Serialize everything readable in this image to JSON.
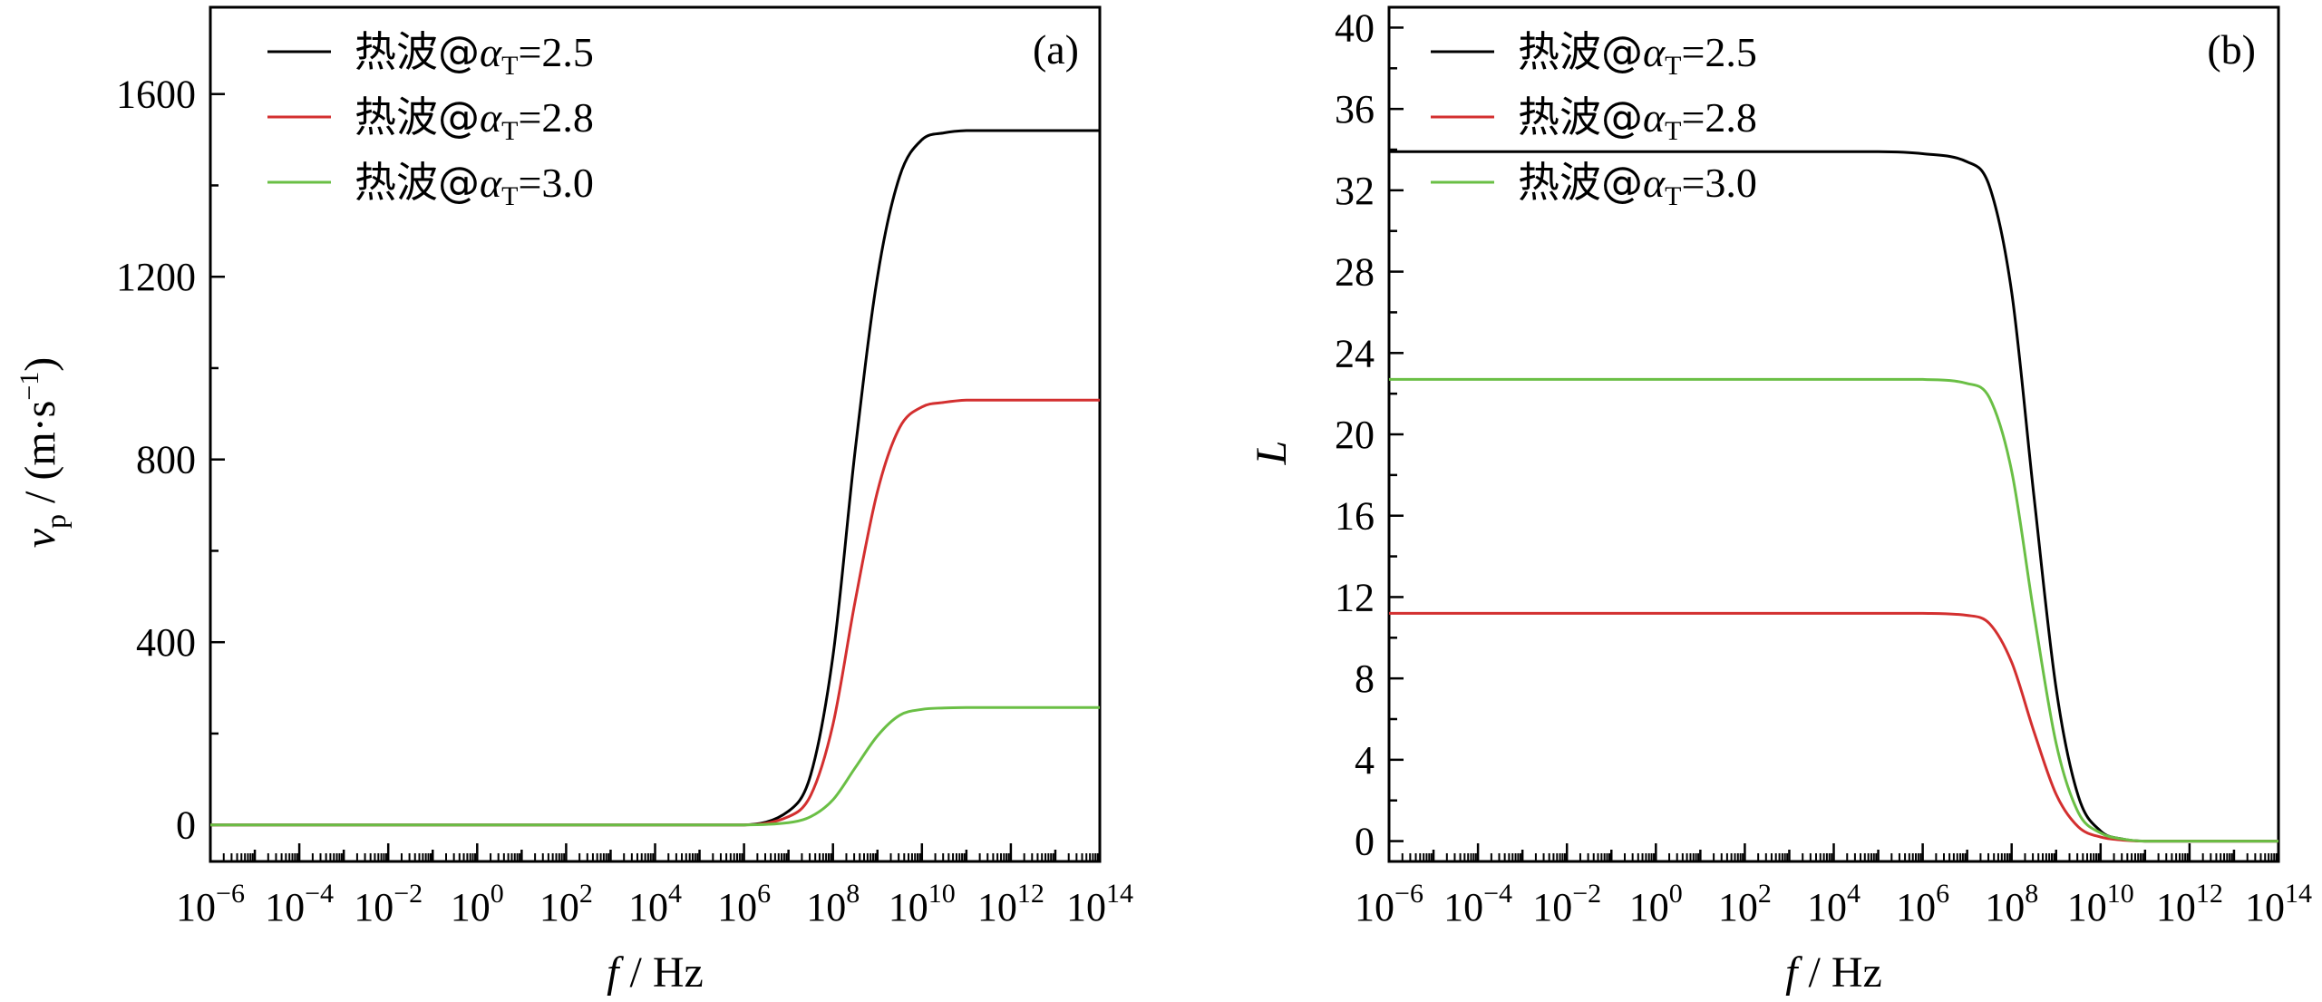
{
  "chart_data": [
    {
      "panel": "(a)",
      "type": "line",
      "xscale": "log",
      "xlim": [
        -6,
        14
      ],
      "ylim": [
        -80,
        1790
      ],
      "xticks": [
        -6,
        -4,
        -2,
        0,
        2,
        4,
        6,
        8,
        10,
        12,
        14
      ],
      "yticks": [
        0,
        400,
        800,
        1200,
        1600
      ],
      "xlabel": {
        "var": "f",
        "unit": " / Hz"
      },
      "ylabel": {
        "var": "v",
        "sub": "p",
        "unit_pre": " / (m·s",
        "unit_sup": "−1",
        "unit_post": ")"
      },
      "legend_position": "top-left",
      "series": [
        {
          "name": "热波@αT=2.5",
          "label": {
            "zh": "热波@",
            "alpha": "α",
            "sub": "T",
            "val": "=2.5"
          },
          "color": "#000000",
          "x": [
            -6,
            6,
            7,
            7.5,
            8,
            8.5,
            9,
            9.5,
            10,
            10.5,
            11,
            12,
            14
          ],
          "y": [
            0,
            0,
            30,
            110,
            370,
            820,
            1200,
            1420,
            1500,
            1515,
            1520,
            1520,
            1520
          ]
        },
        {
          "name": "热波@αT=2.8",
          "label": {
            "zh": "热波@",
            "alpha": "α",
            "sub": "T",
            "val": "=2.8"
          },
          "color": "#d32f2f",
          "x": [
            -6,
            6,
            7,
            7.5,
            8,
            8.5,
            9,
            9.5,
            10,
            10.5,
            11,
            12,
            14
          ],
          "y": [
            0,
            0,
            18,
            65,
            220,
            490,
            730,
            870,
            915,
            925,
            930,
            930,
            930
          ]
        },
        {
          "name": "热波@αT=3.0",
          "label": {
            "zh": "热波@",
            "alpha": "α",
            "sub": "T",
            "val": "=3.0"
          },
          "color": "#6abf45",
          "x": [
            -6,
            6,
            7,
            7.5,
            8,
            8.5,
            9,
            9.5,
            10,
            10.5,
            11,
            12,
            14
          ],
          "y": [
            0,
            0,
            5,
            18,
            55,
            125,
            195,
            240,
            253,
            256,
            257,
            257,
            257
          ]
        }
      ]
    },
    {
      "panel": "(b)",
      "type": "line",
      "xscale": "log",
      "xlim": [
        -6,
        14
      ],
      "ylim": [
        -1,
        41
      ],
      "xticks": [
        -6,
        -4,
        -2,
        0,
        2,
        4,
        6,
        8,
        10,
        12,
        14
      ],
      "yticks": [
        0,
        4,
        8,
        12,
        16,
        20,
        24,
        28,
        32,
        36,
        40
      ],
      "xlabel": {
        "var": "f",
        "unit": " / Hz"
      },
      "ylabel": {
        "var": "L"
      },
      "legend_position": "top-left",
      "series": [
        {
          "name": "热波@αT=2.5",
          "label": {
            "zh": "热波@",
            "alpha": "α",
            "sub": "T",
            "val": "=2.5"
          },
          "color": "#000000",
          "x": [
            -6,
            5,
            6,
            7,
            7.5,
            8,
            8.5,
            9,
            9.5,
            10,
            10.5,
            11,
            14
          ],
          "y": [
            33.9,
            33.9,
            33.8,
            33.4,
            32.2,
            27,
            17,
            7.5,
            2.2,
            0.5,
            0.1,
            0,
            0
          ]
        },
        {
          "name": "热波@αT=2.8",
          "label": {
            "zh": "热波@",
            "alpha": "α",
            "sub": "T",
            "val": "=2.8"
          },
          "color": "#d32f2f",
          "x": [
            -6,
            5,
            6,
            7,
            7.5,
            8,
            8.5,
            9,
            9.5,
            10,
            10.5,
            11,
            14
          ],
          "y": [
            11.2,
            11.2,
            11.2,
            11.1,
            10.7,
            8.8,
            5.4,
            2.3,
            0.7,
            0.2,
            0.05,
            0,
            0
          ]
        },
        {
          "name": "热波@αT=3.0",
          "label": {
            "zh": "热波@",
            "alpha": "α",
            "sub": "T",
            "val": "=3.0"
          },
          "color": "#6abf45",
          "x": [
            -6,
            5,
            6,
            7,
            7.5,
            8,
            8.5,
            9,
            9.5,
            10,
            10.5,
            11,
            14
          ],
          "y": [
            22.7,
            22.7,
            22.7,
            22.5,
            21.8,
            18.2,
            11.2,
            4.8,
            1.4,
            0.4,
            0.1,
            0,
            0
          ]
        }
      ]
    }
  ]
}
